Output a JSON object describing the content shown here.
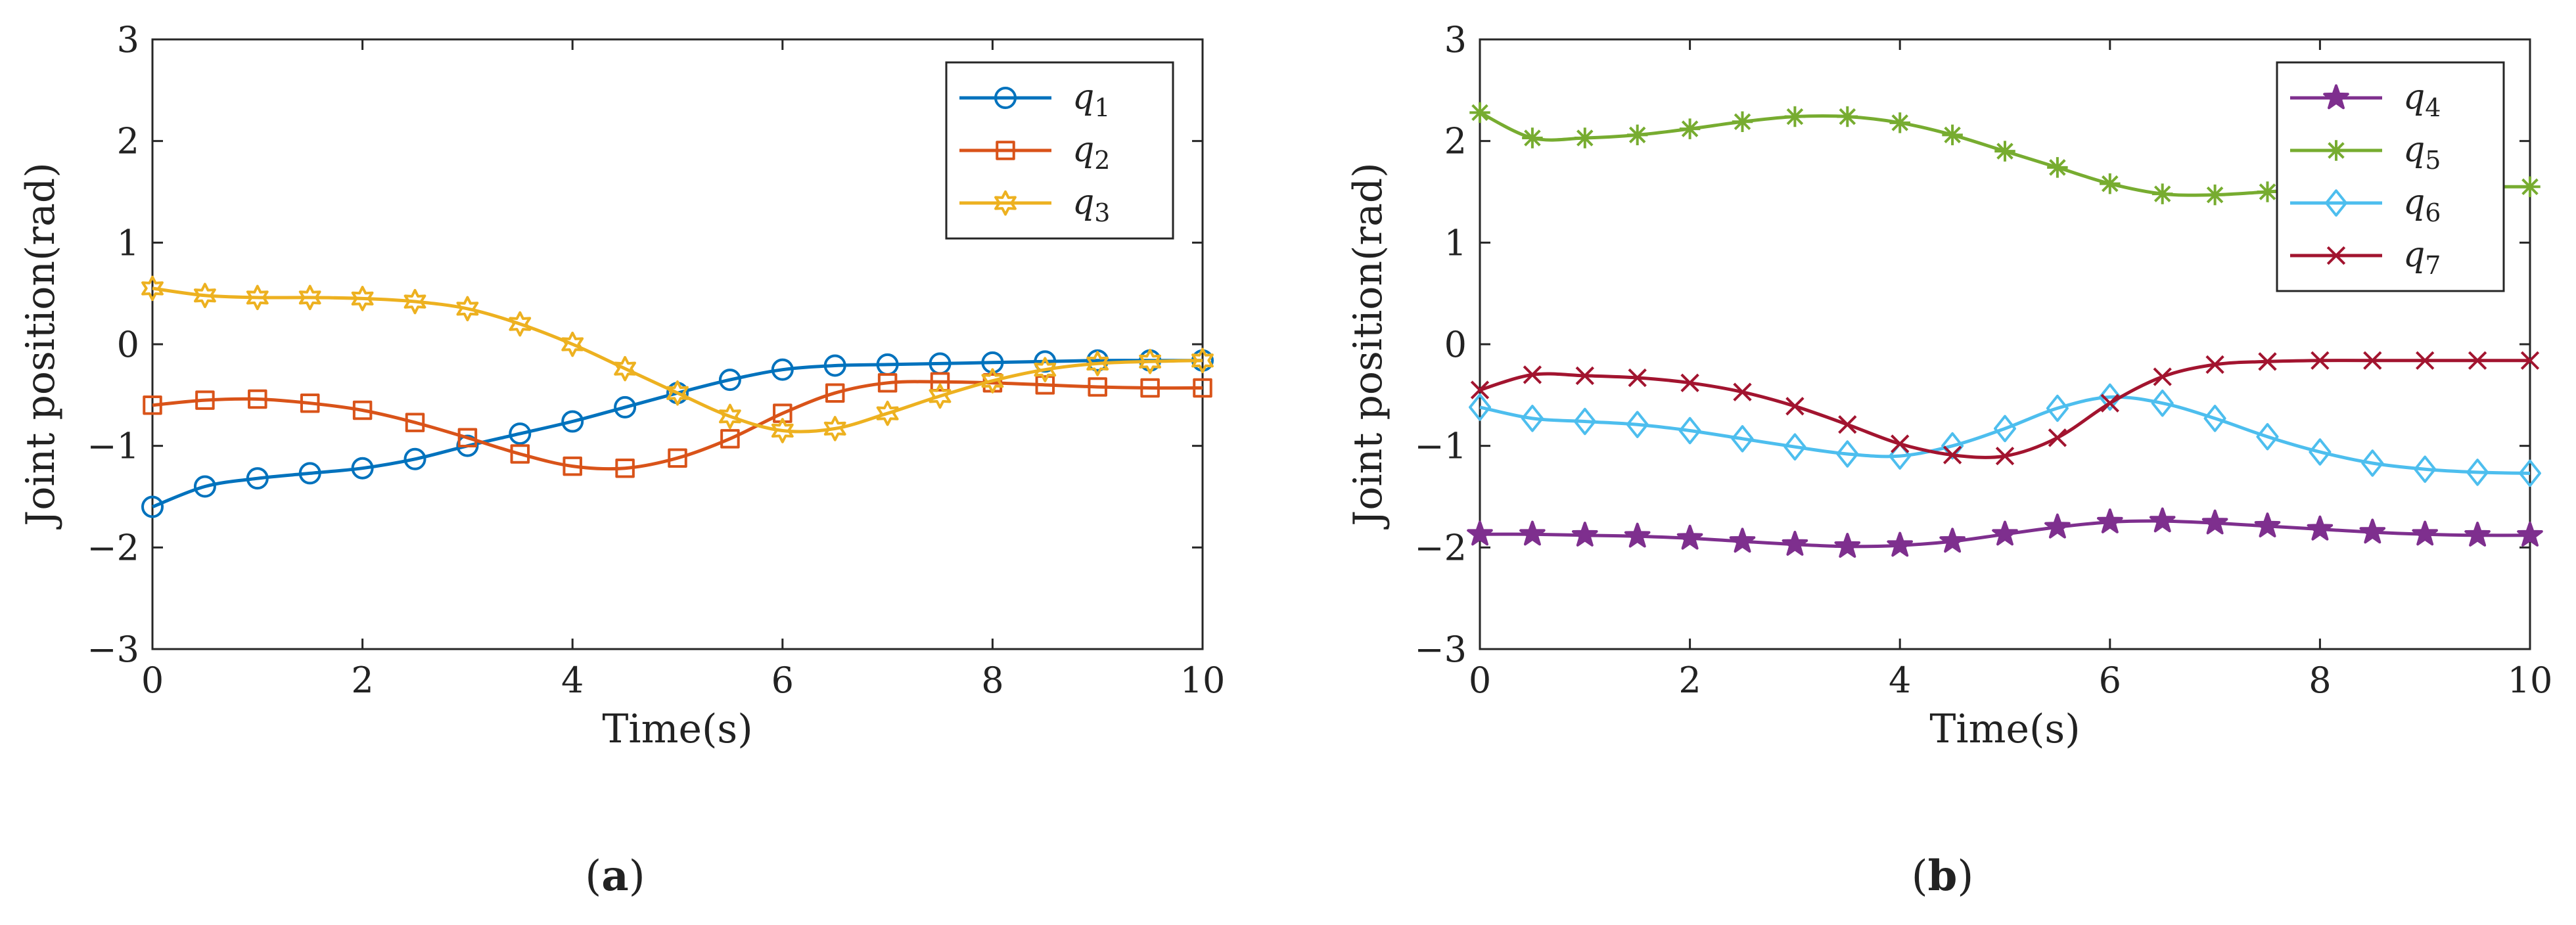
{
  "chart_data": [
    {
      "type": "line",
      "panel_label": "a",
      "title": "",
      "xlabel": "Time(s)",
      "ylabel": "Joint position(rad)",
      "xlim": [
        0,
        10
      ],
      "ylim": [
        -3,
        3
      ],
      "xticks": [
        "0",
        "2",
        "4",
        "6",
        "8",
        "10"
      ],
      "yticks": [
        "−3",
        "−2",
        "−1",
        "0",
        "1",
        "2",
        "3"
      ],
      "grid": false,
      "legend_position": "top-right",
      "x": [
        0,
        0.5,
        1,
        1.5,
        2,
        2.5,
        3,
        3.5,
        4,
        4.5,
        5,
        5.5,
        6,
        6.5,
        7,
        7.5,
        8,
        8.5,
        9,
        9.5,
        10
      ],
      "series": [
        {
          "name": "q",
          "subscript": "1",
          "color": "#0072BD",
          "marker": "circle",
          "values": [
            -1.6,
            -1.4,
            -1.32,
            -1.27,
            -1.22,
            -1.13,
            -1.0,
            -0.88,
            -0.76,
            -0.62,
            -0.48,
            -0.35,
            -0.25,
            -0.21,
            -0.2,
            -0.19,
            -0.18,
            -0.17,
            -0.16,
            -0.16,
            -0.16
          ]
        },
        {
          "name": "q",
          "subscript": "2",
          "color": "#D95319",
          "marker": "square",
          "values": [
            -0.6,
            -0.55,
            -0.54,
            -0.58,
            -0.65,
            -0.77,
            -0.92,
            -1.08,
            -1.2,
            -1.22,
            -1.12,
            -0.93,
            -0.68,
            -0.48,
            -0.38,
            -0.37,
            -0.38,
            -0.4,
            -0.42,
            -0.43,
            -0.43
          ]
        },
        {
          "name": "q",
          "subscript": "3",
          "color": "#EDB120",
          "marker": "hexagram",
          "values": [
            0.55,
            0.48,
            0.46,
            0.46,
            0.45,
            0.42,
            0.35,
            0.2,
            0.0,
            -0.24,
            -0.48,
            -0.71,
            -0.85,
            -0.83,
            -0.68,
            -0.51,
            -0.36,
            -0.25,
            -0.19,
            -0.17,
            -0.16
          ]
        }
      ]
    },
    {
      "type": "line",
      "panel_label": "b",
      "title": "",
      "xlabel": "Time(s)",
      "ylabel": "Joint position(rad)",
      "xlim": [
        0,
        10
      ],
      "ylim": [
        -3,
        3
      ],
      "xticks": [
        "0",
        "2",
        "4",
        "6",
        "8",
        "10"
      ],
      "yticks": [
        "−3",
        "−2",
        "−1",
        "0",
        "1",
        "2",
        "3"
      ],
      "grid": false,
      "legend_position": "top-right",
      "x": [
        0,
        0.5,
        1,
        1.5,
        2,
        2.5,
        3,
        3.5,
        4,
        4.5,
        5,
        5.5,
        6,
        6.5,
        7,
        7.5,
        8,
        8.5,
        9,
        9.5,
        10
      ],
      "series": [
        {
          "name": "q",
          "subscript": "4",
          "color": "#7E2F8E",
          "marker": "pentagram",
          "values": [
            -1.87,
            -1.87,
            -1.88,
            -1.89,
            -1.91,
            -1.94,
            -1.97,
            -1.99,
            -1.98,
            -1.94,
            -1.87,
            -1.8,
            -1.75,
            -1.74,
            -1.76,
            -1.79,
            -1.82,
            -1.85,
            -1.87,
            -1.88,
            -1.88
          ]
        },
        {
          "name": "q",
          "subscript": "5",
          "color": "#77AC30",
          "marker": "asterisk",
          "values": [
            2.28,
            2.03,
            2.03,
            2.06,
            2.12,
            2.19,
            2.24,
            2.24,
            2.18,
            2.06,
            1.9,
            1.74,
            1.58,
            1.48,
            1.47,
            1.5,
            1.53,
            1.55,
            1.55,
            1.55,
            1.55
          ]
        },
        {
          "name": "q",
          "subscript": "6",
          "color": "#4DBEEE",
          "marker": "diamond",
          "values": [
            -0.62,
            -0.73,
            -0.76,
            -0.79,
            -0.85,
            -0.93,
            -1.01,
            -1.08,
            -1.1,
            -1.0,
            -0.83,
            -0.63,
            -0.52,
            -0.58,
            -0.73,
            -0.91,
            -1.06,
            -1.17,
            -1.23,
            -1.26,
            -1.27
          ]
        },
        {
          "name": "q",
          "subscript": "7",
          "color": "#A2142F",
          "marker": "x",
          "values": [
            -0.45,
            -0.3,
            -0.31,
            -0.33,
            -0.38,
            -0.47,
            -0.61,
            -0.79,
            -0.98,
            -1.09,
            -1.1,
            -0.92,
            -0.58,
            -0.32,
            -0.2,
            -0.17,
            -0.16,
            -0.16,
            -0.16,
            -0.16,
            -0.16
          ]
        }
      ]
    }
  ]
}
